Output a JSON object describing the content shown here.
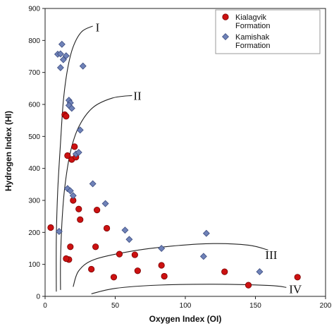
{
  "chart_data": {
    "type": "scatter",
    "title": "",
    "xlabel": "Oxygen Index (OI)",
    "ylabel": "Hydrogen Index (HI)",
    "xlim": [
      0,
      200
    ],
    "ylim": [
      0,
      900
    ],
    "xticks": [
      0,
      50,
      100,
      150,
      200
    ],
    "yticks": [
      0,
      100,
      200,
      300,
      400,
      500,
      600,
      700,
      800,
      900
    ],
    "grid": false,
    "legend": {
      "placement": "top-right",
      "entries": [
        {
          "label_lines": [
            "Kialagvik",
            "Formation"
          ],
          "marker": "circle",
          "color": "#cc1111"
        },
        {
          "label_lines": [
            "Kamishak",
            "Formation"
          ],
          "marker": "diamond",
          "color": "#6f82b8"
        }
      ]
    },
    "series": [
      {
        "name": "Kialagvik Formation",
        "marker": "circle",
        "color": "#cc1111",
        "points": [
          [
            4,
            215
          ],
          [
            14,
            568
          ],
          [
            15,
            563
          ],
          [
            16,
            440
          ],
          [
            17,
            115
          ],
          [
            15,
            118
          ],
          [
            18,
            155
          ],
          [
            19,
            428
          ],
          [
            20,
            300
          ],
          [
            21,
            468
          ],
          [
            22,
            435
          ],
          [
            24,
            273
          ],
          [
            25,
            240
          ],
          [
            33,
            85
          ],
          [
            36,
            155
          ],
          [
            37,
            270
          ],
          [
            44,
            213
          ],
          [
            49,
            60
          ],
          [
            53,
            132
          ],
          [
            64,
            130
          ],
          [
            66,
            80
          ],
          [
            83,
            97
          ],
          [
            85,
            63
          ],
          [
            128,
            77
          ],
          [
            145,
            35
          ],
          [
            180,
            60
          ]
        ]
      },
      {
        "name": "Kamishak Formation",
        "marker": "diamond",
        "color": "#6f82b8",
        "points": [
          [
            9,
            757
          ],
          [
            11,
            758
          ],
          [
            12,
            788
          ],
          [
            13,
            740
          ],
          [
            11,
            715
          ],
          [
            15,
            752
          ],
          [
            17,
            613
          ],
          [
            18,
            605
          ],
          [
            17,
            597
          ],
          [
            19,
            588
          ],
          [
            25,
            520
          ],
          [
            16,
            337
          ],
          [
            18,
            330
          ],
          [
            20,
            315
          ],
          [
            22,
            445
          ],
          [
            24,
            450
          ],
          [
            27,
            720
          ],
          [
            34,
            352
          ],
          [
            43,
            290
          ],
          [
            57,
            207
          ],
          [
            60,
            178
          ],
          [
            10,
            203
          ],
          [
            83,
            150
          ],
          [
            113,
            125
          ],
          [
            115,
            197
          ],
          [
            153,
            77
          ]
        ]
      }
    ],
    "annotations": [
      {
        "text": "I",
        "x": 36,
        "y": 842
      },
      {
        "text": "II",
        "x": 63,
        "y": 628
      },
      {
        "text": "III",
        "x": 157,
        "y": 130
      },
      {
        "text": "IV",
        "x": 174,
        "y": 23
      }
    ],
    "curves": [
      {
        "label": "I",
        "points": [
          [
            8,
            15
          ],
          [
            8,
            180
          ],
          [
            9,
            330
          ],
          [
            11,
            480
          ],
          [
            13,
            610
          ],
          [
            16,
            710
          ],
          [
            20,
            780
          ],
          [
            26,
            827
          ],
          [
            34,
            845
          ]
        ]
      },
      {
        "label": "II",
        "points": [
          [
            11,
            20
          ],
          [
            11,
            110
          ],
          [
            12,
            230
          ],
          [
            14,
            340
          ],
          [
            18,
            450
          ],
          [
            24,
            530
          ],
          [
            34,
            590
          ],
          [
            48,
            620
          ],
          [
            62,
            628
          ]
        ]
      },
      {
        "label": "III",
        "points": [
          [
            20,
            30
          ],
          [
            24,
            80
          ],
          [
            35,
            115
          ],
          [
            60,
            140
          ],
          [
            90,
            157
          ],
          [
            120,
            165
          ],
          [
            145,
            160
          ],
          [
            159,
            145
          ]
        ]
      },
      {
        "label": "IV",
        "points": [
          [
            33,
            8
          ],
          [
            50,
            25
          ],
          [
            80,
            35
          ],
          [
            120,
            38
          ],
          [
            160,
            34
          ],
          [
            172,
            28
          ]
        ]
      }
    ]
  }
}
